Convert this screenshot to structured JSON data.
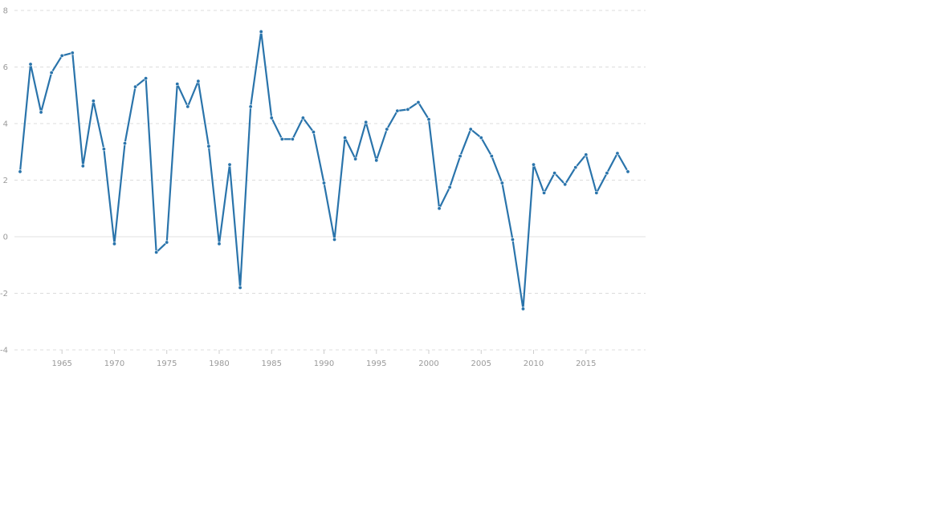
{
  "chart_data": {
    "type": "line",
    "title": "",
    "xlabel": "",
    "ylabel": "",
    "xlim": [
      1961,
      2019
    ],
    "ylim": [
      -4,
      8
    ],
    "y_ticks": [
      -4,
      -2,
      0,
      2,
      4,
      6,
      8
    ],
    "x_ticks": [
      1965,
      1970,
      1975,
      1980,
      1985,
      1990,
      1995,
      2000,
      2005,
      2010,
      2015
    ],
    "grid": true,
    "legend": "none",
    "colors": {
      "line": "#2a74ab",
      "grid": "#dcdcdc",
      "ticks": "#9a9a9a"
    },
    "x": [
      1961,
      1962,
      1963,
      1964,
      1965,
      1966,
      1967,
      1968,
      1969,
      1970,
      1971,
      1972,
      1973,
      1974,
      1975,
      1976,
      1977,
      1978,
      1979,
      1980,
      1981,
      1982,
      1983,
      1984,
      1985,
      1986,
      1987,
      1988,
      1989,
      1990,
      1991,
      1992,
      1993,
      1994,
      1995,
      1996,
      1997,
      1998,
      1999,
      2000,
      2001,
      2002,
      2003,
      2004,
      2005,
      2006,
      2007,
      2008,
      2009,
      2010,
      2011,
      2012,
      2013,
      2014,
      2015,
      2016,
      2017,
      2018,
      2019
    ],
    "series": [
      {
        "values": [
          2.3,
          6.1,
          4.4,
          5.8,
          6.4,
          6.5,
          2.5,
          4.8,
          3.1,
          -0.25,
          3.3,
          5.3,
          5.6,
          -0.55,
          -0.2,
          5.4,
          4.6,
          5.5,
          3.2,
          -0.25,
          2.55,
          -1.8,
          4.6,
          7.25,
          4.2,
          3.45,
          3.45,
          4.2,
          3.7,
          1.9,
          -0.1,
          3.5,
          2.75,
          4.05,
          2.7,
          3.8,
          4.45,
          4.5,
          4.75,
          4.15,
          1.0,
          1.75,
          2.85,
          3.8,
          3.5,
          2.85,
          1.9,
          -0.1,
          -2.55,
          2.55,
          1.55,
          2.25,
          1.85,
          2.45,
          2.9,
          1.55,
          2.25,
          2.95,
          2.3
        ]
      }
    ]
  }
}
